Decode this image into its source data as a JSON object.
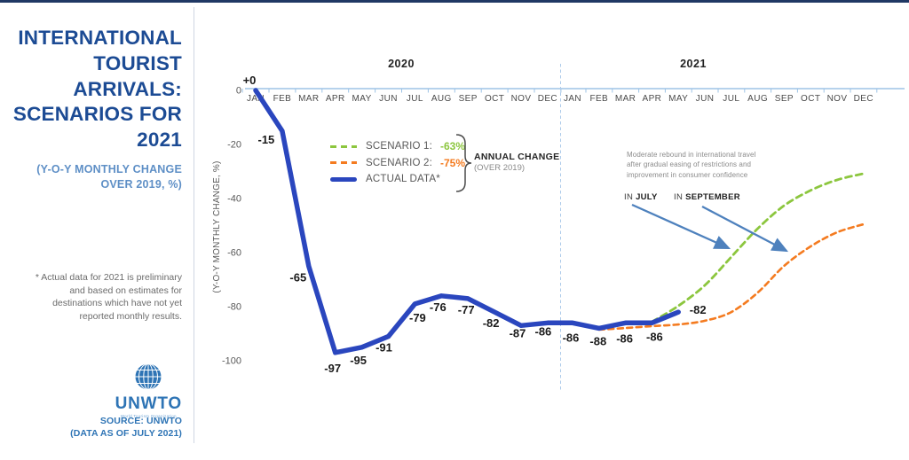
{
  "sidebar": {
    "title_lines": [
      "INTERNATIONAL",
      "TOURIST",
      "ARRIVALS:",
      "SCENARIOS FOR",
      "2021"
    ],
    "subtitle_lines": [
      "(Y-O-Y MONTHLY CHANGE",
      "OVER 2019, %)"
    ],
    "footnote_lines": [
      "* Actual data for 2021 is preliminary",
      "and based on estimates for",
      "destinations which have not yet",
      "reported monthly results."
    ],
    "logo": {
      "name": "UNWTO",
      "tagline": "World Tourism Organization"
    },
    "source_lines": [
      "SOURCE: UNWTO",
      "(DATA AS OF JULY 2021)"
    ]
  },
  "chart_data": {
    "type": "line",
    "ylabel": "(Y-O-Y MONTHLY CHANGE, %)",
    "ylim": [
      -100,
      0
    ],
    "yticks": [
      0,
      -20,
      -40,
      -60,
      -80,
      -100
    ],
    "grid": false,
    "year_groups": [
      {
        "label": "2020",
        "months": [
          "JAN",
          "FEB",
          "MAR",
          "APR",
          "MAY",
          "JUN",
          "JUL",
          "AUG",
          "SEP",
          "OCT",
          "NOV",
          "DEC"
        ]
      },
      {
        "label": "2021",
        "months": [
          "JAN",
          "FEB",
          "MAR",
          "APR",
          "MAY",
          "JUN",
          "JUL",
          "AUG",
          "SEP",
          "OCT",
          "NOV",
          "DEC"
        ]
      }
    ],
    "series": [
      {
        "name": "ACTUAL DATA*",
        "style": "solid",
        "color": "#2A46BE",
        "start_index": 0,
        "values": [
          0,
          -15,
          -65,
          -97,
          -95,
          -91,
          -79,
          -76,
          -77,
          -82,
          -87,
          -86,
          -86,
          -88,
          -86,
          -86,
          -82
        ],
        "point_labels": [
          "+0",
          "-15",
          "-65",
          "-97",
          "-95",
          "-91",
          "-79",
          "-76",
          "-77",
          "-82",
          "-87",
          "-86",
          "-86",
          "-88",
          "-86",
          "-86",
          "-82"
        ],
        "label_offsets": [
          [
            -7,
            -11
          ],
          [
            -18,
            10
          ],
          [
            -12,
            13
          ],
          [
            -3,
            18
          ],
          [
            -4,
            15
          ],
          [
            -5,
            13
          ],
          [
            3,
            16
          ],
          [
            -4,
            13
          ],
          [
            -2,
            13
          ],
          [
            -4,
            13
          ],
          [
            -4,
            9
          ],
          [
            -5,
            10
          ],
          [
            -2,
            17
          ],
          [
            -1,
            15
          ],
          [
            -1,
            18
          ],
          [
            3,
            16
          ],
          [
            22,
            -2
          ]
        ]
      },
      {
        "name": "SCENARIO 1:",
        "annual_change": "-63%",
        "style": "dashed",
        "color": "#8CC63E",
        "start_index": 15,
        "values": [
          -85.6,
          -79.7,
          -72.1,
          -61.6,
          -51.1,
          -42.6,
          -37,
          -33.1,
          -30.8
        ],
        "rebound_month": "JULY"
      },
      {
        "name": "SCENARIO 2:",
        "annual_change": "-75%",
        "style": "dashed",
        "color": "#F47B20",
        "start_index": 13,
        "values": [
          -88.5,
          -87.9,
          -87.2,
          -86.6,
          -85.2,
          -82,
          -74.8,
          -64.9,
          -57.7,
          -52.5,
          -49.5
        ],
        "rebound_month": "SEPTEMBER"
      }
    ],
    "legend": {
      "annual_change_label": "ANNUAL CHANGE",
      "annual_change_sub": "(OVER 2019)"
    },
    "annotation_lines": [
      "Moderate rebound in international travel",
      "after gradual easing of restrictions and",
      "improvement in consumer confidence"
    ],
    "callouts": [
      {
        "label_prefix": "IN",
        "label_bold": "JULY"
      },
      {
        "label_prefix": "IN",
        "label_bold": "SEPTEMBER"
      }
    ],
    "colors": {
      "actual": "#2A46BE",
      "scenario1": "#8CC63E",
      "scenario2": "#F47B20",
      "axis": "#9DC3E6",
      "year_separator": "#AECBEA",
      "arrow": "#4E81BD",
      "data_label": "#1a1a1a",
      "tick_label": "#595959"
    }
  }
}
